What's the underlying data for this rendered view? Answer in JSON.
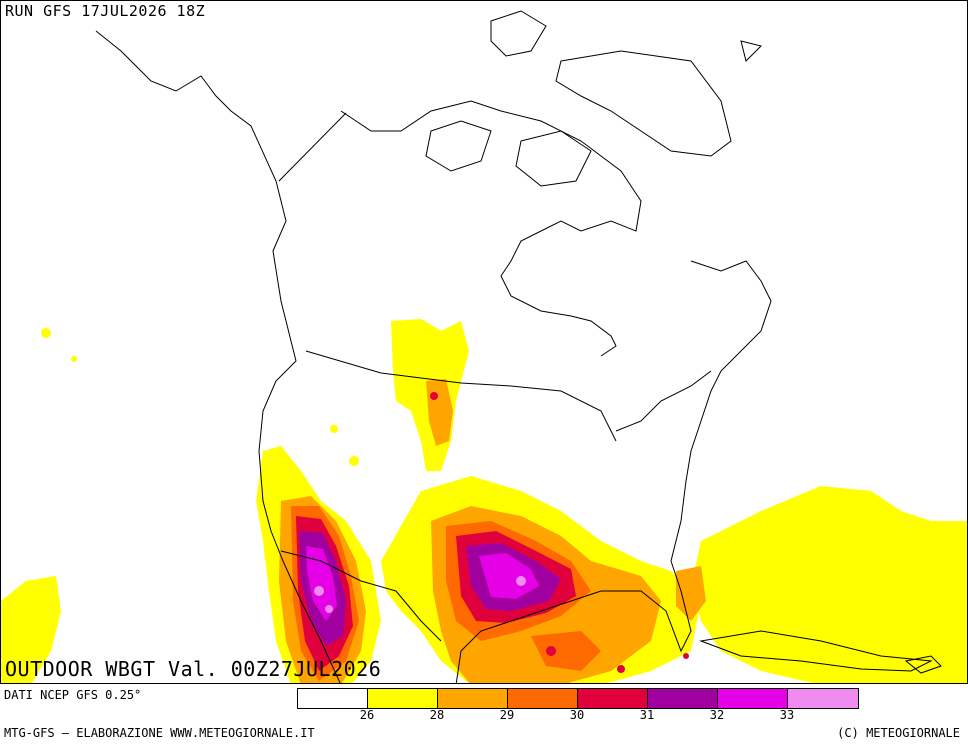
{
  "header": {
    "run": "RUN GFS 17JUL2026 18Z"
  },
  "field": {
    "title": "OUTDOOR WBGT Val. 00Z27JUL2026"
  },
  "source": {
    "data": "DATI NCEP GFS 0.25°"
  },
  "legend": {
    "colors": [
      "#ffffff",
      "#ffff00",
      "#ffa500",
      "#ff6a00",
      "#e0003c",
      "#a000a0",
      "#e600e6",
      "#f08cf0"
    ],
    "ticks": [
      "26",
      "28",
      "29",
      "30",
      "31",
      "32",
      "33"
    ]
  },
  "footer": {
    "left": "MTG-GFS — ELABORAZIONE WWW.METEOGIORNALE.IT",
    "right": "(C) METEOGIORNALE"
  }
}
